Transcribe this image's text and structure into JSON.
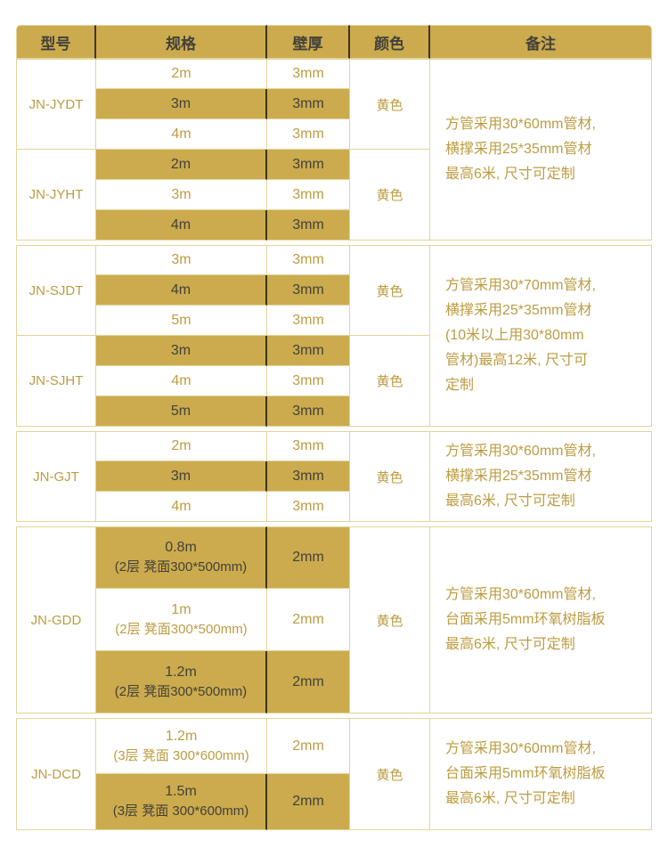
{
  "colors": {
    "gold": "#CBAB4D",
    "gold_text": "#BC9C42",
    "dark_text": "#44413a",
    "border": "#E4D39B",
    "dark_divider": "#3E351C",
    "page_bg": "#FFFFFF"
  },
  "table": {
    "headers": [
      "型号",
      "规格",
      "壁厚",
      "颜色",
      "备注"
    ],
    "blocks": [
      {
        "remark_lines": [
          "方管采用30*60mm管材,",
          "横撑采用25*35mm管材",
          "最高6米, 尺寸可定制"
        ],
        "groups": [
          {
            "model": "JN-JYDT",
            "color": "黄色",
            "rows": [
              {
                "spec": "2m",
                "thickness": "3mm",
                "highlight": false
              },
              {
                "spec": "3m",
                "thickness": "3mm",
                "highlight": true
              },
              {
                "spec": "4m",
                "thickness": "3mm",
                "highlight": false
              }
            ]
          },
          {
            "model": "JN-JYHT",
            "color": "黄色",
            "rows": [
              {
                "spec": "2m",
                "thickness": "3mm",
                "highlight": true
              },
              {
                "spec": "3m",
                "thickness": "3mm",
                "highlight": false
              },
              {
                "spec": "4m",
                "thickness": "3mm",
                "highlight": true
              }
            ]
          }
        ]
      },
      {
        "remark_lines": [
          "方管采用30*70mm管材,",
          "横撑采用25*35mm管材",
          "(10米以上用30*80mm",
          "管材)最高12米, 尺寸可",
          "定制"
        ],
        "groups": [
          {
            "model": "JN-SJDT",
            "color": "黄色",
            "rows": [
              {
                "spec": "3m",
                "thickness": "3mm",
                "highlight": false
              },
              {
                "spec": "4m",
                "thickness": "3mm",
                "highlight": true
              },
              {
                "spec": "5m",
                "thickness": "3mm",
                "highlight": false
              }
            ]
          },
          {
            "model": "JN-SJHT",
            "color": "黄色",
            "rows": [
              {
                "spec": "3m",
                "thickness": "3mm",
                "highlight": true
              },
              {
                "spec": "4m",
                "thickness": "3mm",
                "highlight": false
              },
              {
                "spec": "5m",
                "thickness": "3mm",
                "highlight": true
              }
            ]
          }
        ]
      },
      {
        "remark_lines": [
          "方管采用30*60mm管材,",
          "横撑采用25*35mm管材",
          "最高6米, 尺寸可定制"
        ],
        "groups": [
          {
            "model": "JN-GJT",
            "color": "黄色",
            "rows": [
              {
                "spec": "2m",
                "thickness": "3mm",
                "highlight": false
              },
              {
                "spec": "3m",
                "thickness": "3mm",
                "highlight": true
              },
              {
                "spec": "4m",
                "thickness": "3mm",
                "highlight": false
              }
            ]
          }
        ]
      },
      {
        "remark_lines": [
          "方管采用30*60mm管材,",
          "台面采用5mm环氧树脂板",
          "最高6米, 尺寸可定制"
        ],
        "groups": [
          {
            "model": "JN-GDD",
            "color": "黄色",
            "rows": [
              {
                "spec": "0.8m",
                "spec_sub": "(2层 凳面300*500mm)",
                "thickness": "2mm",
                "highlight": true
              },
              {
                "spec": "1m",
                "spec_sub": "(2层 凳面300*500mm)",
                "thickness": "2mm",
                "highlight": false
              },
              {
                "spec": "1.2m",
                "spec_sub": "(2层 凳面300*500mm)",
                "thickness": "2mm",
                "highlight": true
              }
            ]
          }
        ]
      },
      {
        "remark_lines": [
          "方管采用30*60mm管材,",
          "台面采用5mm环氧树脂板",
          "最高6米, 尺寸可定制"
        ],
        "groups": [
          {
            "model": "JN-DCD",
            "color": "黄色",
            "rows": [
              {
                "spec": "1.2m",
                "spec_sub": "(3层 凳面 300*600mm)",
                "thickness": "2mm",
                "highlight": false
              },
              {
                "spec": "1.5m",
                "spec_sub": "(3层 凳面 300*600mm)",
                "thickness": "2mm",
                "highlight": true
              }
            ]
          }
        ]
      }
    ]
  }
}
